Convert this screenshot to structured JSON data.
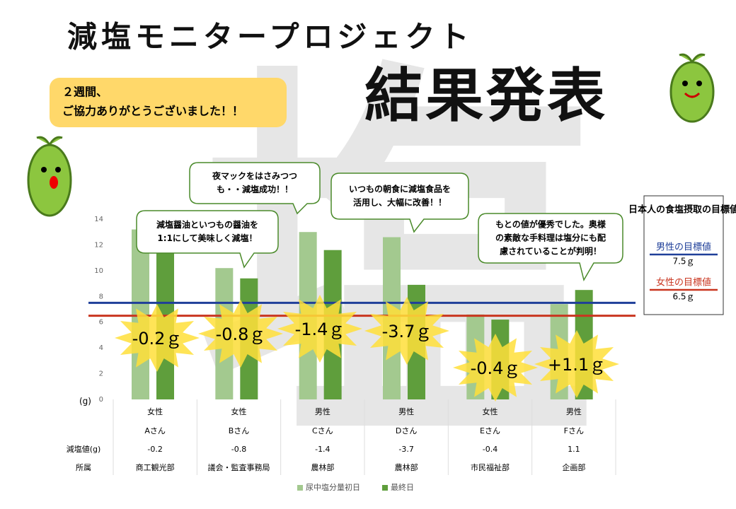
{
  "chart_data": {
    "type": "bar",
    "title": "減塩モニタープロジェクト",
    "subtitle": "結果発表",
    "watermark": "塩",
    "note": [
      "２週間、",
      "ご協力ありがとうございました！！"
    ],
    "categories": [
      "Aさん",
      "Bさん",
      "Cさん",
      "Dさん",
      "Eさん",
      "Fさん"
    ],
    "series": [
      {
        "name": "尿中塩分量初日",
        "color": "#a3c98f",
        "values": [
          13.2,
          10.2,
          13.0,
          12.6,
          6.6,
          7.4
        ]
      },
      {
        "name": "最終日",
        "color": "#5f9e3c",
        "values": [
          13.0,
          9.4,
          11.6,
          8.9,
          6.2,
          8.5
        ]
      }
    ],
    "ylim": [
      0,
      14
    ],
    "yticks": [
      0,
      2,
      4,
      6,
      8,
      10,
      12,
      14
    ],
    "y_unit": "(g)",
    "reference_title": "日本人の食塩摂取の目標値",
    "reference_lines": [
      {
        "name": "男性の目標値",
        "value": 7.5,
        "label": "7.5ｇ",
        "color": "#1f3f99"
      },
      {
        "name": "女性の目標値",
        "value": 6.5,
        "label": "6.5ｇ",
        "color": "#c9351f"
      }
    ],
    "row_labels": [
      "減塩値(g)",
      "所属"
    ],
    "genders": [
      "女性",
      "女性",
      "男性",
      "男性",
      "女性",
      "男性"
    ],
    "reductions": [
      -0.2,
      -0.8,
      -1.4,
      -3.7,
      -0.4,
      1.1
    ],
    "reduction_labels": [
      "-0.2ｇ",
      "-0.8ｇ",
      "-1.4ｇ",
      "-3.7ｇ",
      "-0.4ｇ",
      "+1.1ｇ"
    ],
    "departments": [
      "商工観光部",
      "議会・監査事務局",
      "農林部",
      "農林部",
      "市民福祉部",
      "企画部"
    ],
    "annotations": [
      {
        "lines": [
          "夜マックをはさみつつ",
          "も・・減塩成功！！"
        ]
      },
      {
        "lines": [
          "減塩醤油といつもの醤油を",
          "1:1にして美味しく減塩！"
        ]
      },
      {
        "lines": [
          "いつもの朝食に減塩食品を",
          "活用し、大幅に改善！！"
        ]
      },
      {
        "lines": [
          "もとの値が優秀でした。奥様",
          "の素敵な手料理は塩分にも配",
          "慮されていることが判明！"
        ]
      }
    ]
  }
}
